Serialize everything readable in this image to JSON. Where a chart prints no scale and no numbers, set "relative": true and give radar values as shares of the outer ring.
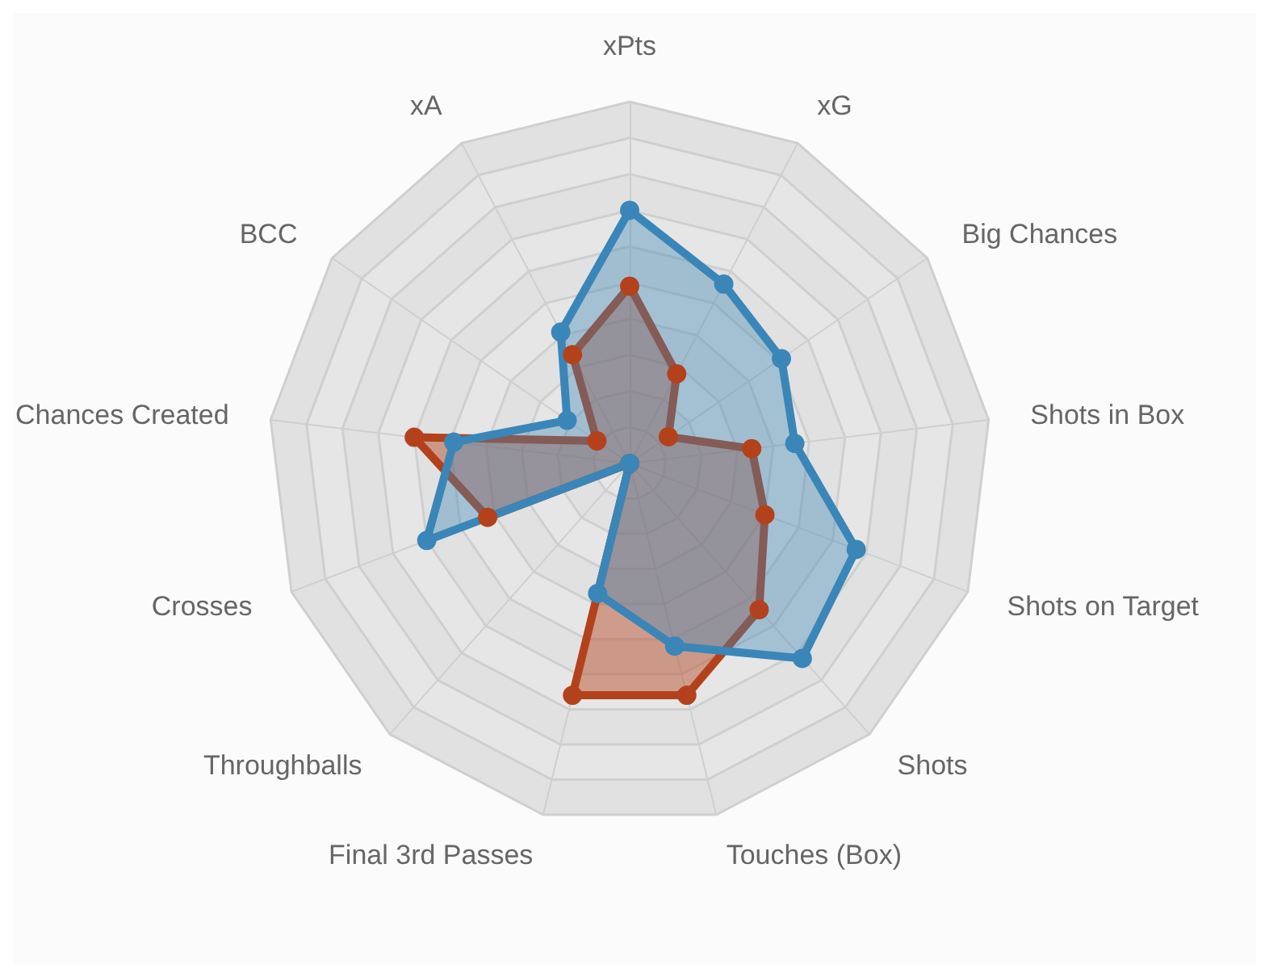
{
  "chart_data": {
    "type": "radar",
    "relative": true,
    "categories": [
      "xPts",
      "xG",
      "Big Chances",
      "Shots in Box",
      "Shots on Target",
      "Shots",
      "Touches (Box)",
      "Final 3rd Passes",
      "Throughballs",
      "Crosses",
      "Chances Created",
      "BCC",
      "xA"
    ],
    "series": [
      {
        "color": "#b3421c",
        "values": [
          0.49,
          0.28,
          0.13,
          0.34,
          0.4,
          0.54,
          0.66,
          0.66,
          0,
          0.42,
          0.6,
          0.11,
          0.34
        ]
      },
      {
        "color": "#3a86b8",
        "values": [
          0.7,
          0.56,
          0.51,
          0.46,
          0.67,
          0.72,
          0.52,
          0.37,
          0,
          0.6,
          0.49,
          0.21,
          0.41
        ]
      }
    ],
    "marker": "circle"
  }
}
